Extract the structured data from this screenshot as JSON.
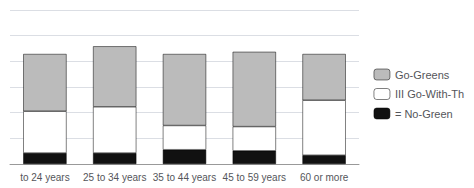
{
  "chart_data": {
    "type": "bar",
    "stacked": true,
    "categories": [
      "to 24 years",
      "25 to 34 years",
      "35 to 44 years",
      "45 to 59 years",
      "60 or more"
    ],
    "series": [
      {
        "name": "= No-Green",
        "color": "#111111",
        "values": [
          10,
          10,
          13,
          12,
          8
        ]
      },
      {
        "name": "III Go-With-Th",
        "color": "#ffffff",
        "values": [
          38,
          42,
          22,
          22,
          50
        ]
      },
      {
        "name": "Go-Greens",
        "color": "#bbbbbb",
        "values": [
          52,
          55,
          65,
          68,
          42
        ]
      }
    ],
    "ylim": [
      0,
      140
    ],
    "yticks": [
      0,
      23.333333333333332,
      46.666666666666664,
      70,
      93.33333333333333,
      116.66666666666666,
      140
    ],
    "grid": true,
    "legend": "right",
    "tick_labels": "x"
  }
}
